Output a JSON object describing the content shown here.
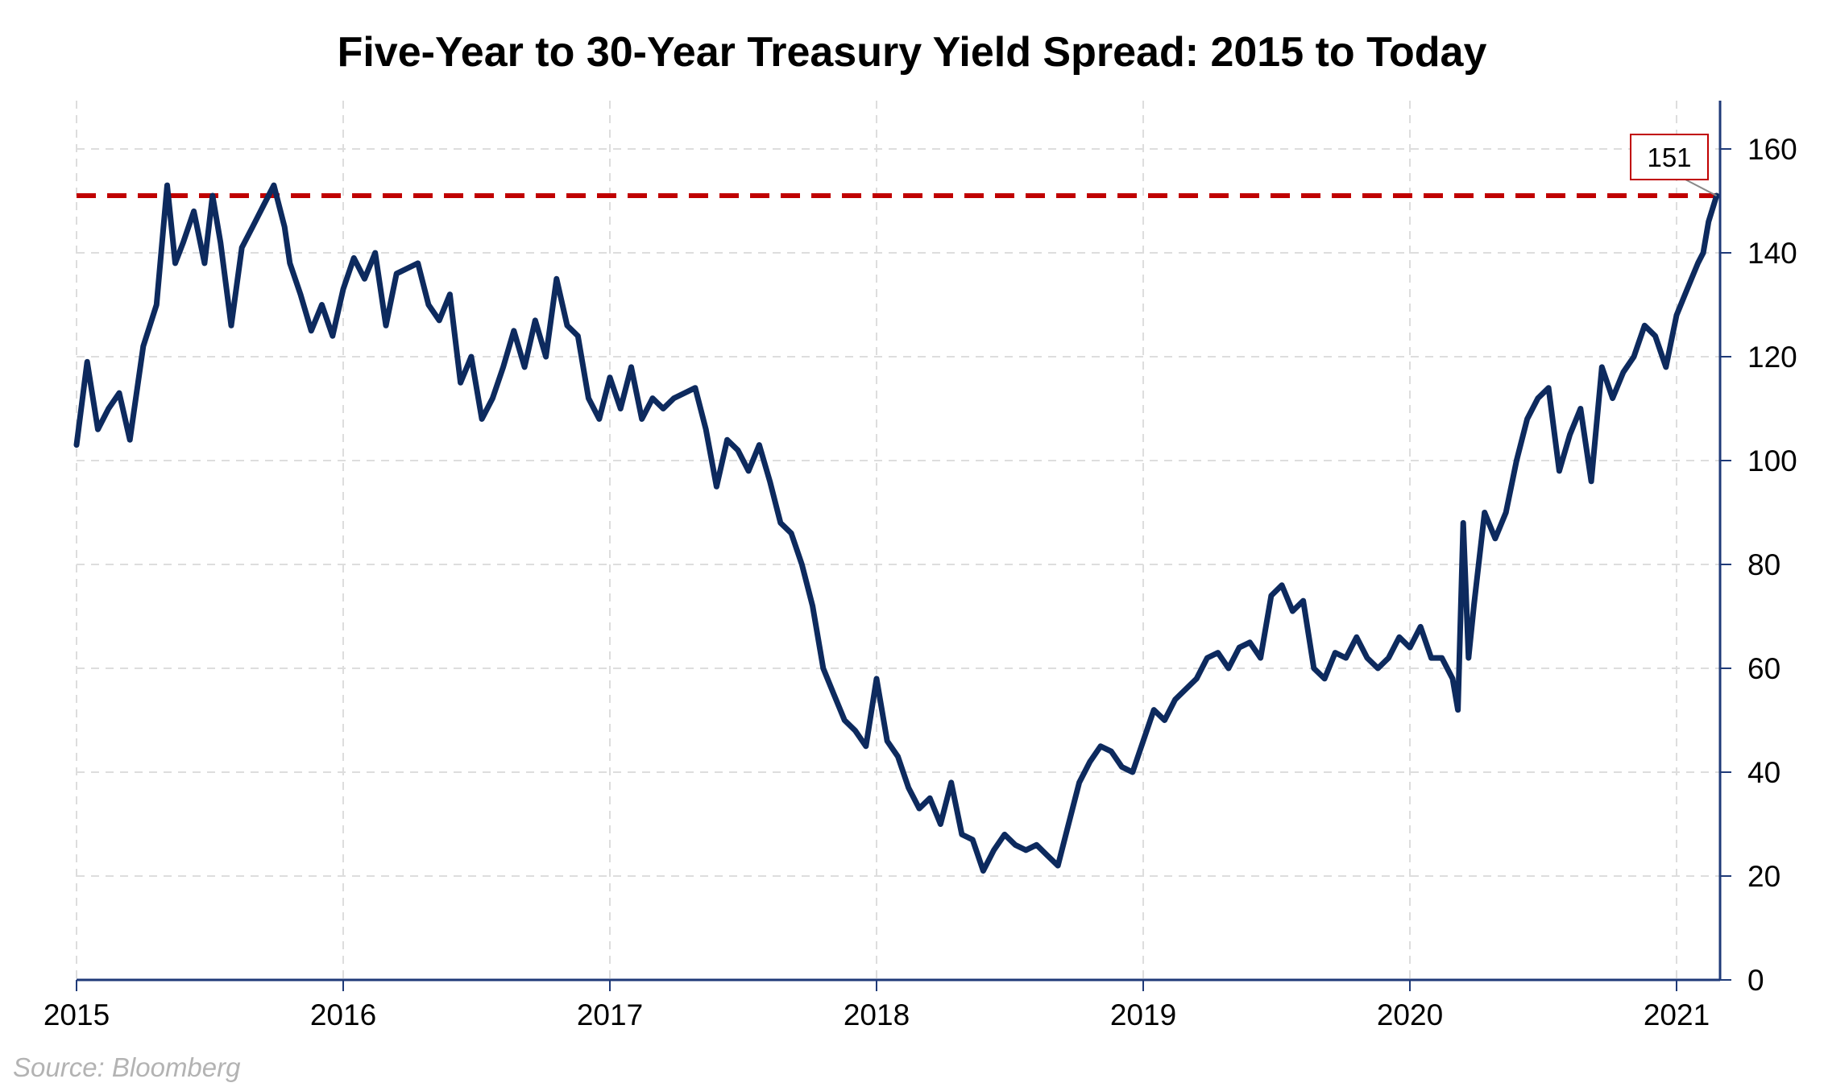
{
  "chart_data": {
    "type": "line",
    "title": "Five-Year to 30-Year Treasury Yield Spread: 2015 to Today",
    "source": "Source: Bloomberg",
    "xlabel": "",
    "ylabel": "",
    "x_ticks": [
      "2015",
      "2016",
      "2017",
      "2018",
      "2019",
      "2020",
      "2021"
    ],
    "x_range": [
      2015.0,
      2021.17
    ],
    "y_ticks": [
      "0",
      "20",
      "40",
      "60",
      "80",
      "100",
      "120",
      "140",
      "160"
    ],
    "ylim": [
      0,
      170
    ],
    "y_axis_side": "right",
    "grid": true,
    "reference_line": {
      "value": 151,
      "style": "dashed",
      "color": "#c00000"
    },
    "last_value_label": "151",
    "colors": {
      "series": "#0d2a5e",
      "reference": "#c00000",
      "axis": "#1f3a78",
      "grid": "#dddddd",
      "source": "#b3b3b3"
    },
    "series": [
      {
        "x": [
          2015.0,
          2015.04,
          2015.08,
          2015.12,
          2015.16,
          2015.2,
          2015.25,
          2015.3,
          2015.34,
          2015.37,
          2015.4,
          2015.44,
          2015.48,
          2015.51,
          2015.54,
          2015.58,
          2015.62,
          2015.66,
          2015.7,
          2015.74,
          2015.78,
          2015.8,
          2015.84,
          2015.88,
          2015.92,
          2015.96,
          2016.0,
          2016.04,
          2016.08,
          2016.12,
          2016.16,
          2016.2,
          2016.24,
          2016.28,
          2016.32,
          2016.36,
          2016.4,
          2016.44,
          2016.48,
          2016.52,
          2016.56,
          2016.6,
          2016.64,
          2016.68,
          2016.72,
          2016.76,
          2016.8,
          2016.84,
          2016.88,
          2016.92,
          2016.96,
          2017.0,
          2017.04,
          2017.08,
          2017.12,
          2017.16,
          2017.2,
          2017.24,
          2017.28,
          2017.32,
          2017.36,
          2017.4,
          2017.44,
          2017.48,
          2017.52,
          2017.56,
          2017.6,
          2017.64,
          2017.68,
          2017.72,
          2017.76,
          2017.8,
          2017.84,
          2017.88,
          2017.92,
          2017.96,
          2018.0,
          2018.04,
          2018.08,
          2018.12,
          2018.16,
          2018.2,
          2018.24,
          2018.28,
          2018.32,
          2018.36,
          2018.4,
          2018.44,
          2018.48,
          2018.52,
          2018.56,
          2018.6,
          2018.64,
          2018.68,
          2018.72,
          2018.76,
          2018.8,
          2018.84,
          2018.88,
          2018.92,
          2018.96,
          2019.0,
          2019.04,
          2019.08,
          2019.12,
          2019.16,
          2019.2,
          2019.24,
          2019.28,
          2019.32,
          2019.36,
          2019.4,
          2019.44,
          2019.48,
          2019.52,
          2019.56,
          2019.6,
          2019.64,
          2019.68,
          2019.72,
          2019.76,
          2019.8,
          2019.84,
          2019.88,
          2019.92,
          2019.96,
          2020.0,
          2020.04,
          2020.08,
          2020.12,
          2020.16,
          2020.18,
          2020.2,
          2020.22,
          2020.24,
          2020.28,
          2020.32,
          2020.36,
          2020.4,
          2020.44,
          2020.48,
          2020.52,
          2020.56,
          2020.6,
          2020.64,
          2020.68,
          2020.72,
          2020.76,
          2020.8,
          2020.84,
          2020.88,
          2020.92,
          2020.96,
          2021.0,
          2021.04,
          2021.08,
          2021.1,
          2021.12,
          2021.15
        ],
        "values": [
          103,
          119,
          106,
          110,
          113,
          104,
          122,
          130,
          153,
          138,
          142,
          148,
          138,
          151,
          142,
          126,
          141,
          145,
          149,
          153,
          145,
          138,
          132,
          125,
          130,
          124,
          133,
          139,
          135,
          140,
          126,
          136,
          137,
          138,
          130,
          127,
          132,
          115,
          120,
          108,
          112,
          118,
          125,
          118,
          127,
          120,
          135,
          126,
          124,
          112,
          108,
          116,
          110,
          118,
          108,
          112,
          110,
          112,
          113,
          114,
          106,
          95,
          104,
          102,
          98,
          103,
          96,
          88,
          86,
          80,
          72,
          60,
          55,
          50,
          48,
          45,
          58,
          46,
          43,
          37,
          33,
          35,
          30,
          38,
          28,
          27,
          21,
          25,
          28,
          26,
          25,
          26,
          24,
          22,
          30,
          38,
          42,
          45,
          44,
          41,
          40,
          46,
          52,
          50,
          54,
          56,
          58,
          62,
          63,
          60,
          64,
          65,
          62,
          74,
          76,
          71,
          73,
          60,
          58,
          63,
          62,
          66,
          62,
          60,
          62,
          66,
          64,
          68,
          62,
          62,
          58,
          52,
          88,
          62,
          72,
          90,
          85,
          90,
          100,
          108,
          112,
          114,
          98,
          105,
          110,
          96,
          118,
          112,
          117,
          120,
          126,
          124,
          118,
          128,
          133,
          138,
          140,
          146,
          151
        ]
      }
    ]
  }
}
